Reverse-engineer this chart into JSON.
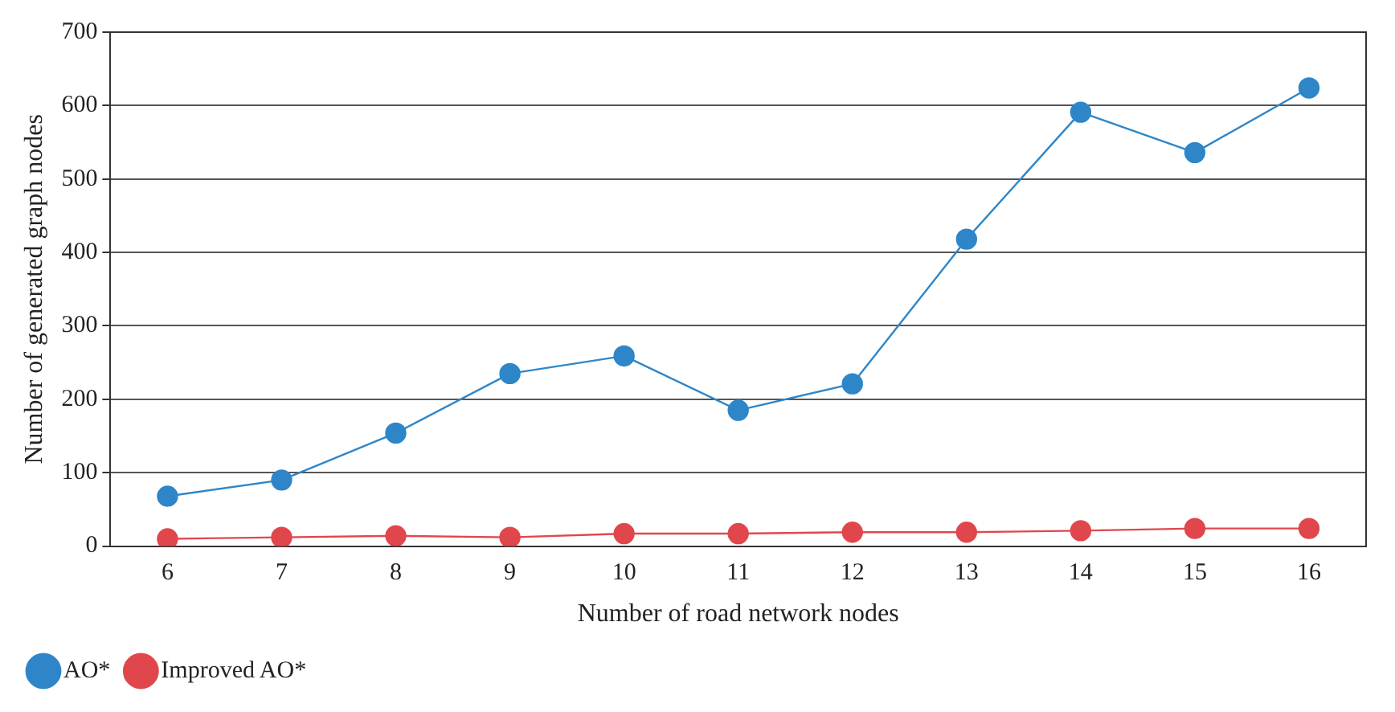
{
  "chart_data": {
    "type": "line",
    "xlabel": "Number of road network nodes",
    "ylabel": "Number of generated graph nodes",
    "categories": [
      "6",
      "7",
      "8",
      "9",
      "10",
      "11",
      "12",
      "13",
      "14",
      "15",
      "16"
    ],
    "series": [
      {
        "name": "AO*",
        "color": "#2e86c8",
        "values": [
          68,
          90,
          154,
          235,
          259,
          185,
          221,
          418,
          591,
          536,
          624
        ]
      },
      {
        "name": "Improved AO*",
        "color": "#e0474c",
        "values": [
          10,
          12,
          14,
          12,
          17,
          17,
          19,
          19,
          21,
          24,
          24
        ]
      }
    ],
    "ylim": [
      0,
      700
    ],
    "yticks": [
      0,
      100,
      200,
      300,
      400,
      500,
      600,
      700
    ],
    "grid": "y",
    "legend": "bottom left",
    "marker": "circle",
    "line_style": "solid"
  }
}
